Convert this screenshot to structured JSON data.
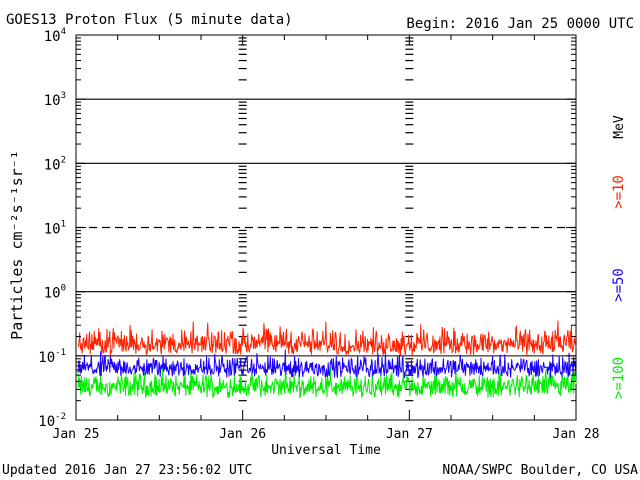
{
  "header": {
    "title": "GOES13 Proton Flux (5 minute data)",
    "begin": "Begin: 2016 Jan 25 0000 UTC"
  },
  "footer": {
    "updated": "Updated 2016 Jan 27 23:56:02 UTC",
    "credit": "NOAA/SWPC Boulder, CO USA"
  },
  "chart_data": {
    "type": "line",
    "title": "GOES13 Proton Flux (5 minute data)",
    "xlabel": "Universal Time",
    "ylabel": "Particles cm⁻²s⁻¹sr⁻¹",
    "yscale": "log",
    "ylim": [
      0.01,
      10000
    ],
    "y_ticks": [
      {
        "base": "10",
        "exp": "-2"
      },
      {
        "base": "10",
        "exp": "-1"
      },
      {
        "base": "10",
        "exp": "0"
      },
      {
        "base": "10",
        "exp": "1"
      },
      {
        "base": "10",
        "exp": "2"
      },
      {
        "base": "10",
        "exp": "3"
      },
      {
        "base": "10",
        "exp": "4"
      }
    ],
    "x_ticks": [
      "Jan 25",
      "Jan 26",
      "Jan 27",
      "Jan 28"
    ],
    "xlim": [
      "2016-01-25T00:00",
      "2016-01-28T00:00"
    ],
    "threshold_lines": {
      "solid": [
        1,
        100,
        1000
      ],
      "dashed": [
        10
      ],
      "solid_thin": [
        0.1
      ]
    },
    "right_axis_label": "MeV",
    "series": [
      {
        "name": ">=10",
        "color": "#ff2200",
        "typical_low": 0.1,
        "typical_high": 0.3
      },
      {
        "name": ">=50",
        "color": "#1a00ff",
        "typical_low": 0.045,
        "typical_high": 0.11
      },
      {
        "name": ">=100",
        "color": "#00ee00",
        "typical_low": 0.022,
        "typical_high": 0.06
      }
    ]
  }
}
